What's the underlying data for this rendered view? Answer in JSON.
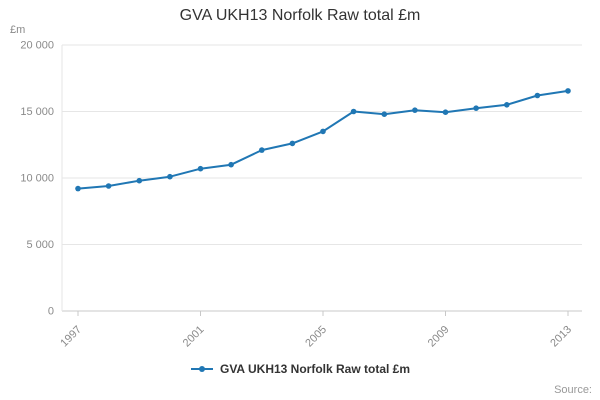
{
  "title": "GVA UKH13 Norfolk Raw total £m",
  "y_axis_unit_label": "£m",
  "source_label": "Source:",
  "legend": {
    "label": "GVA UKH13 Norfolk Raw total £m"
  },
  "colors": {
    "series": "#2077b4",
    "grid": "#e6e6e6",
    "axis": "#c8c8c8",
    "tick_text": "#8a8a8a",
    "title_text": "#333333"
  },
  "chart_data": {
    "type": "line",
    "title": "GVA UKH13 Norfolk Raw total £m",
    "xlabel": "",
    "ylabel": "£m",
    "x": [
      1997,
      1998,
      1999,
      2000,
      2001,
      2002,
      2003,
      2004,
      2005,
      2006,
      2007,
      2008,
      2009,
      2010,
      2011,
      2012,
      2013
    ],
    "series": [
      {
        "name": "GVA UKH13 Norfolk Raw total £m",
        "values": [
          9200,
          9400,
          9800,
          10100,
          10700,
          11000,
          12100,
          12600,
          13500,
          15000,
          14800,
          15100,
          14950,
          15250,
          15500,
          16200,
          16550
        ]
      }
    ],
    "ylim": [
      0,
      20000
    ],
    "y_ticks": [
      0,
      5000,
      10000,
      15000,
      20000
    ],
    "y_tick_labels": [
      "0",
      "5 000",
      "10 000",
      "15 000",
      "20 000"
    ],
    "x_tick_years": [
      1997,
      2001,
      2005,
      2009,
      2013
    ],
    "x_tick_labels": [
      "1997",
      "2001",
      "2005",
      "2009",
      "2013"
    ],
    "grid": true,
    "legend_position": "bottom",
    "marker": "circle"
  }
}
